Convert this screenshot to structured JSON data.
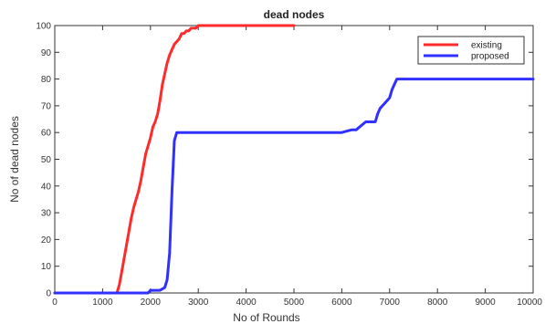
{
  "chart_data": {
    "type": "line",
    "title": "dead nodes",
    "xlabel": "No of Rounds",
    "ylabel": "No of dead nodes",
    "xlim": [
      0,
      10000
    ],
    "ylim": [
      0,
      100
    ],
    "xticks": [
      0,
      1000,
      2000,
      3000,
      4000,
      5000,
      6000,
      7000,
      8000,
      9000,
      10000
    ],
    "yticks": [
      0,
      10,
      20,
      30,
      40,
      50,
      60,
      70,
      80,
      90,
      100
    ],
    "grid": false,
    "legend_position": "top-right",
    "series": [
      {
        "name": "existing",
        "color": "#ff2a2a",
        "x": [
          0,
          1300,
          1350,
          1400,
          1450,
          1500,
          1550,
          1600,
          1650,
          1700,
          1750,
          1800,
          1850,
          1900,
          1950,
          2000,
          2050,
          2100,
          2150,
          2200,
          2250,
          2300,
          2350,
          2400,
          2450,
          2500,
          2550,
          2600,
          2650,
          2700,
          2750,
          2800,
          2850,
          2900,
          2950,
          3000,
          3050,
          3100,
          3200,
          3500,
          4000,
          4500,
          5000
        ],
        "y": [
          0,
          0,
          3,
          8,
          13,
          18,
          23,
          28,
          32,
          35,
          38,
          42,
          47,
          52,
          55,
          58,
          62,
          64,
          67,
          72,
          78,
          82,
          86,
          89,
          91,
          93,
          94,
          95,
          97,
          97,
          98,
          98,
          99,
          99,
          99,
          100,
          100,
          100,
          100,
          100,
          100,
          100,
          100
        ]
      },
      {
        "name": "proposed",
        "color": "#3030ff",
        "x": [
          0,
          1950,
          2000,
          2200,
          2300,
          2350,
          2400,
          2450,
          2500,
          2550,
          2600,
          3000,
          4000,
          5000,
          6000,
          6200,
          6300,
          6500,
          6700,
          6750,
          6800,
          6900,
          7000,
          7050,
          7100,
          7150,
          7200,
          8000,
          9000,
          10000
        ],
        "y": [
          0,
          0,
          1,
          1,
          2,
          5,
          15,
          38,
          57,
          60,
          60,
          60,
          60,
          60,
          60,
          61,
          61,
          64,
          64,
          67,
          69,
          71,
          73,
          76,
          78,
          80,
          80,
          80,
          80,
          80
        ]
      }
    ]
  }
}
